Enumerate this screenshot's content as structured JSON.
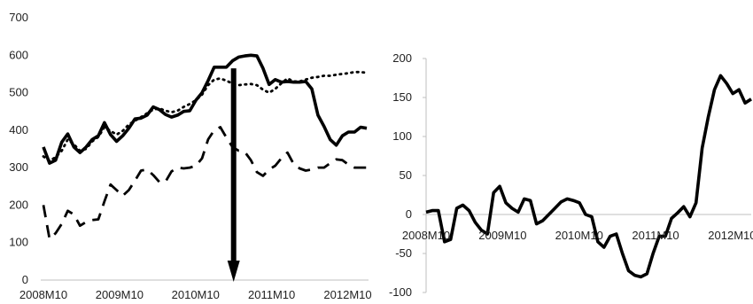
{
  "chart_data": [
    {
      "type": "line",
      "x_ticks": [
        "2008M10",
        "2009M10",
        "2010M10",
        "2011M10",
        "2012M10"
      ],
      "y_ticks": [
        "0",
        "100",
        "200",
        "300",
        "400",
        "500",
        "600",
        "700"
      ],
      "ylim": [
        0,
        700
      ],
      "grid": false,
      "x_start": "2008M10",
      "x_end": "2013M01",
      "series": [
        {
          "style": "solid",
          "color": "#000000",
          "values": [
            355,
            312,
            320,
            368,
            390,
            355,
            340,
            355,
            375,
            385,
            420,
            388,
            370,
            385,
            405,
            430,
            432,
            440,
            462,
            455,
            442,
            435,
            440,
            450,
            452,
            480,
            500,
            532,
            568,
            568,
            568,
            585,
            595,
            598,
            600,
            598,
            565,
            522,
            535,
            528,
            530,
            528,
            528,
            530,
            510,
            440,
            410,
            375,
            360,
            385,
            395,
            395,
            408,
            405
          ]
        },
        {
          "style": "dotted",
          "color": "#000000",
          "values": [
            330,
            318,
            328,
            345,
            375,
            362,
            345,
            350,
            370,
            382,
            408,
            398,
            388,
            398,
            415,
            425,
            435,
            445,
            455,
            458,
            452,
            448,
            452,
            462,
            470,
            480,
            495,
            520,
            535,
            538,
            532,
            524,
            520,
            522,
            523,
            520,
            508,
            500,
            510,
            525,
            538,
            530,
            530,
            535,
            540,
            542,
            545,
            545,
            548,
            550,
            552,
            555,
            555,
            553
          ]
        },
        {
          "style": "dashed",
          "color": "#000000",
          "values": [
            200,
            110,
            125,
            150,
            185,
            175,
            145,
            155,
            160,
            162,
            210,
            255,
            240,
            225,
            240,
            265,
            292,
            295,
            280,
            262,
            262,
            290,
            300,
            298,
            300,
            305,
            325,
            375,
            400,
            408,
            380,
            355,
            345,
            342,
            320,
            288,
            278,
            295,
            305,
            325,
            340,
            310,
            298,
            292,
            295,
            300,
            300,
            312,
            322,
            320,
            308,
            300,
            300,
            300
          ]
        }
      ],
      "marker": {
        "type": "arrow",
        "at": "2011M04",
        "from": 565,
        "to": 0
      }
    },
    {
      "type": "line",
      "x_ticks": [
        "2008M10",
        "2009M10",
        "2010M10",
        "2011M10",
        "2012M10"
      ],
      "y_ticks": [
        "-100",
        "-50",
        "0",
        "50",
        "100",
        "150",
        "200"
      ],
      "ylim": [
        -100,
        200
      ],
      "grid": false,
      "x_start": "2008M10",
      "x_end": "2013M01",
      "series": [
        {
          "style": "solid",
          "color": "#000000",
          "values": [
            3,
            5,
            5,
            -35,
            -32,
            8,
            12,
            5,
            -10,
            -20,
            -25,
            28,
            36,
            15,
            8,
            3,
            20,
            18,
            -12,
            -8,
            0,
            8,
            16,
            20,
            18,
            15,
            0,
            -3,
            -35,
            -42,
            -28,
            -25,
            -50,
            -72,
            -78,
            -80,
            -76,
            -50,
            -28,
            -28,
            -5,
            2,
            10,
            -3,
            15,
            85,
            125,
            160,
            178,
            168,
            155,
            160,
            143,
            148
          ]
        }
      ]
    }
  ]
}
